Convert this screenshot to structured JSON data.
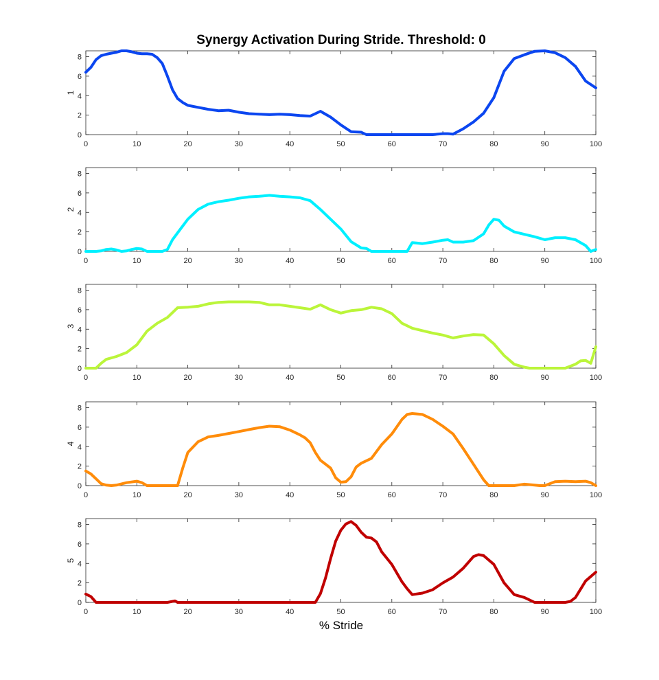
{
  "figure": {
    "title": "Synergy Activation During Stride. Threshold: 0",
    "xlabel": "% Stride"
  },
  "chart_data": [
    {
      "type": "line",
      "ylabel": "1",
      "color": "#0b46f0",
      "xlim": [
        0,
        100
      ],
      "ylim": [
        0,
        8.6
      ],
      "xticks": [
        0,
        10,
        20,
        30,
        40,
        50,
        60,
        70,
        80,
        90,
        100
      ],
      "yticks": [
        0,
        2,
        4,
        6,
        8
      ],
      "x": [
        0,
        1,
        2,
        3,
        4,
        5,
        6,
        7,
        8,
        9,
        10,
        11,
        12,
        13,
        14,
        15,
        16,
        17,
        18,
        19,
        20,
        22,
        24,
        26,
        28,
        30,
        32,
        34,
        36,
        38,
        40,
        42,
        44,
        46,
        48,
        50,
        52,
        54,
        55,
        56,
        58,
        60,
        62,
        64,
        66,
        68,
        70,
        71,
        72,
        74,
        76,
        78,
        80,
        82,
        84,
        86,
        88,
        90,
        92,
        94,
        96,
        98,
        100
      ],
      "y": [
        6.4,
        6.9,
        7.7,
        8.1,
        8.25,
        8.35,
        8.45,
        8.6,
        8.6,
        8.5,
        8.35,
        8.3,
        8.3,
        8.25,
        7.9,
        7.3,
        6.0,
        4.6,
        3.7,
        3.3,
        3.0,
        2.8,
        2.6,
        2.45,
        2.5,
        2.3,
        2.15,
        2.1,
        2.05,
        2.1,
        2.05,
        1.95,
        1.9,
        2.4,
        1.8,
        1.0,
        0.3,
        0.25,
        0.0,
        0.0,
        0.0,
        0.0,
        0.0,
        0.0,
        0.0,
        0.0,
        0.1,
        0.1,
        0.05,
        0.6,
        1.3,
        2.2,
        3.8,
        6.5,
        7.8,
        8.2,
        8.55,
        8.6,
        8.4,
        7.9,
        7.0,
        5.5,
        4.8
      ]
    },
    {
      "type": "line",
      "ylabel": "2",
      "color": "#00f0ff",
      "xlim": [
        0,
        100
      ],
      "ylim": [
        0,
        8.6
      ],
      "xticks": [
        0,
        10,
        20,
        30,
        40,
        50,
        60,
        70,
        80,
        90,
        100
      ],
      "yticks": [
        0,
        2,
        4,
        6,
        8
      ],
      "x": [
        0,
        2,
        3,
        4,
        5,
        6,
        7,
        8,
        9,
        10,
        11,
        12,
        14,
        15,
        16,
        17,
        18,
        20,
        22,
        24,
        26,
        28,
        30,
        32,
        34,
        36,
        38,
        40,
        42,
        44,
        46,
        48,
        50,
        52,
        54,
        55,
        56,
        58,
        60,
        62,
        63,
        64,
        65,
        66,
        68,
        70,
        71,
        72,
        74,
        76,
        78,
        79,
        80,
        81,
        82,
        84,
        86,
        88,
        90,
        92,
        94,
        96,
        98,
        99,
        100
      ],
      "y": [
        0.0,
        0.0,
        0.05,
        0.2,
        0.25,
        0.15,
        0.0,
        0.05,
        0.2,
        0.3,
        0.25,
        0.0,
        0.0,
        0.0,
        0.2,
        1.2,
        1.9,
        3.3,
        4.3,
        4.85,
        5.1,
        5.25,
        5.45,
        5.6,
        5.65,
        5.75,
        5.65,
        5.6,
        5.5,
        5.2,
        4.3,
        3.3,
        2.3,
        1.0,
        0.35,
        0.3,
        0.0,
        0.0,
        0.0,
        0.0,
        0.0,
        0.9,
        0.85,
        0.8,
        0.95,
        1.15,
        1.2,
        0.95,
        0.95,
        1.1,
        1.8,
        2.7,
        3.3,
        3.2,
        2.6,
        2.0,
        1.75,
        1.5,
        1.2,
        1.4,
        1.4,
        1.2,
        0.6,
        0.0,
        0.2
      ]
    },
    {
      "type": "line",
      "ylabel": "3",
      "color": "#bbf53a",
      "xlim": [
        0,
        100
      ],
      "ylim": [
        0,
        8.6
      ],
      "xticks": [
        0,
        10,
        20,
        30,
        40,
        50,
        60,
        70,
        80,
        90,
        100
      ],
      "yticks": [
        0,
        2,
        4,
        6,
        8
      ],
      "x": [
        0,
        2,
        3,
        4,
        6,
        8,
        10,
        12,
        14,
        16,
        18,
        20,
        22,
        24,
        26,
        28,
        30,
        32,
        34,
        36,
        38,
        40,
        42,
        44,
        46,
        48,
        50,
        52,
        54,
        56,
        58,
        60,
        62,
        64,
        66,
        68,
        70,
        72,
        74,
        76,
        78,
        80,
        82,
        84,
        86,
        87,
        88,
        90,
        92,
        94,
        96,
        97,
        98,
        99,
        100
      ],
      "y": [
        0.0,
        0.0,
        0.5,
        0.9,
        1.2,
        1.6,
        2.4,
        3.8,
        4.6,
        5.2,
        6.2,
        6.25,
        6.35,
        6.6,
        6.75,
        6.8,
        6.8,
        6.8,
        6.75,
        6.5,
        6.5,
        6.35,
        6.2,
        6.05,
        6.5,
        6.0,
        5.65,
        5.9,
        6.0,
        6.25,
        6.1,
        5.6,
        4.6,
        4.1,
        3.85,
        3.6,
        3.4,
        3.1,
        3.3,
        3.45,
        3.4,
        2.5,
        1.3,
        0.4,
        0.1,
        0.0,
        0.0,
        0.0,
        0.0,
        0.0,
        0.4,
        0.75,
        0.8,
        0.5,
        2.2
      ]
    },
    {
      "type": "line",
      "ylabel": "4",
      "color": "#ff8c0a",
      "xlim": [
        0,
        100
      ],
      "ylim": [
        0,
        8.6
      ],
      "xticks": [
        0,
        10,
        20,
        30,
        40,
        50,
        60,
        70,
        80,
        90,
        100
      ],
      "yticks": [
        0,
        2,
        4,
        6,
        8
      ],
      "x": [
        0,
        1,
        2,
        3,
        4,
        5,
        6,
        8,
        10,
        11,
        12,
        14,
        16,
        17,
        18,
        19,
        20,
        22,
        24,
        26,
        28,
        30,
        32,
        34,
        36,
        38,
        40,
        42,
        43,
        44,
        45,
        46,
        48,
        49,
        50,
        51,
        52,
        53,
        54,
        56,
        58,
        60,
        62,
        63,
        64,
        66,
        68,
        70,
        72,
        74,
        76,
        78,
        79,
        80,
        82,
        84,
        86,
        88,
        89,
        90,
        92,
        94,
        96,
        98,
        99,
        100
      ],
      "y": [
        1.5,
        1.2,
        0.7,
        0.2,
        0.05,
        0.0,
        0.05,
        0.3,
        0.45,
        0.3,
        0.0,
        0.0,
        0.0,
        0.0,
        0.0,
        1.8,
        3.4,
        4.5,
        5.0,
        5.15,
        5.35,
        5.55,
        5.75,
        5.95,
        6.1,
        6.05,
        5.7,
        5.2,
        4.9,
        4.4,
        3.4,
        2.6,
        1.8,
        0.8,
        0.35,
        0.4,
        0.9,
        1.9,
        2.3,
        2.8,
        4.2,
        5.3,
        6.8,
        7.3,
        7.4,
        7.3,
        6.8,
        6.1,
        5.3,
        3.8,
        2.2,
        0.6,
        0.0,
        0.0,
        0.0,
        0.0,
        0.15,
        0.05,
        0.0,
        0.0,
        0.4,
        0.45,
        0.4,
        0.45,
        0.3,
        0.0
      ]
    },
    {
      "type": "line",
      "ylabel": "5",
      "color": "#c00000",
      "xlim": [
        0,
        100
      ],
      "ylim": [
        0,
        8.6
      ],
      "xticks": [
        0,
        10,
        20,
        30,
        40,
        50,
        60,
        70,
        80,
        90,
        100
      ],
      "yticks": [
        0,
        2,
        4,
        6,
        8
      ],
      "x": [
        0,
        1,
        2,
        4,
        6,
        8,
        10,
        12,
        14,
        16,
        17.5,
        18,
        20,
        25,
        30,
        35,
        40,
        45,
        46,
        47,
        48,
        49,
        50,
        51,
        52,
        53,
        54,
        55,
        56,
        57,
        58,
        60,
        62,
        63,
        64,
        66,
        68,
        70,
        72,
        74,
        76,
        77,
        78,
        80,
        82,
        84,
        86,
        88,
        90,
        92,
        94,
        95,
        96,
        98,
        100
      ],
      "y": [
        0.85,
        0.6,
        0.0,
        0.0,
        0.0,
        0.0,
        0.0,
        0.0,
        0.0,
        0.0,
        0.15,
        0.0,
        0.0,
        0.0,
        0.0,
        0.0,
        0.0,
        0.0,
        0.9,
        2.5,
        4.5,
        6.3,
        7.4,
        8.05,
        8.3,
        7.9,
        7.2,
        6.7,
        6.6,
        6.2,
        5.2,
        3.9,
        2.1,
        1.4,
        0.8,
        0.95,
        1.3,
        2.0,
        2.6,
        3.5,
        4.7,
        4.9,
        4.8,
        3.9,
        2.0,
        0.8,
        0.5,
        0.0,
        0.0,
        0.0,
        0.0,
        0.1,
        0.5,
        2.2,
        3.1
      ]
    }
  ]
}
